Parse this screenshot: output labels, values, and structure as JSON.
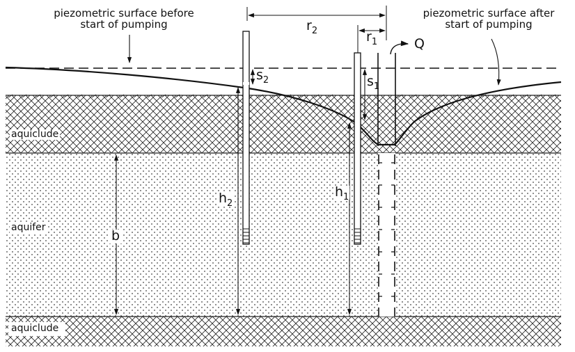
{
  "annotations": {
    "before_line1": "piezometric surface before",
    "before_line2": "start of pumping",
    "after_line1": "piezometric surface after",
    "after_line2": "start of pumping",
    "aquiclude_top": "aquiclude",
    "aquifer": "aquifer",
    "aquiclude_bottom": "aquiclude"
  },
  "symbols": {
    "r2": {
      "base": "r",
      "sub": "2"
    },
    "r1": {
      "base": "r",
      "sub": "1"
    },
    "s2": {
      "base": "s",
      "sub": "2"
    },
    "s1": {
      "base": "s",
      "sub": "1"
    },
    "h2": {
      "base": "h",
      "sub": "2"
    },
    "h1": {
      "base": "h",
      "sub": "1"
    },
    "b": "b",
    "Q": "Q"
  }
}
